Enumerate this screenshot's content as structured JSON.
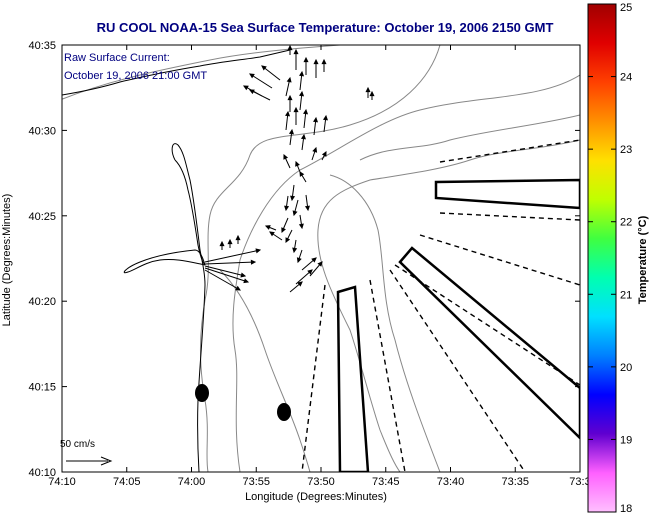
{
  "title": "RU COOL  NOAA-15  Sea Surface Temperature:  October 19, 2006 2150 GMT",
  "annotation": {
    "line1": "Raw Surface Current:",
    "line2": "October 19, 2006 21:00 GMT"
  },
  "axes": {
    "xlabel": "Longitude (Degrees:Minutes)",
    "ylabel": "Latitude (Degrees:Minutes)",
    "x_ticks": [
      "74:10",
      "74:05",
      "74:00",
      "73:55",
      "73:50",
      "73:45",
      "73:40",
      "73:35",
      "73:3"
    ],
    "y_ticks": [
      "40:35",
      "40:30",
      "40:25",
      "40:20",
      "40:15",
      "40:10"
    ]
  },
  "colorbar": {
    "label": "Temperature (°C)",
    "ticks": [
      "25",
      "24",
      "23",
      "22",
      "21",
      "20",
      "19",
      "18"
    ],
    "colors": [
      "#a00000",
      "#e00000",
      "#ff4000",
      "#ff9000",
      "#ffe000",
      "#c0ff00",
      "#40ff40",
      "#00ffb0",
      "#00e0ff",
      "#0080ff",
      "#0000ff",
      "#6000d0",
      "#ff60ff",
      "#ffc0ff"
    ]
  },
  "scale_arrow_label": "50 cm/s",
  "colors": {
    "title": "#000080",
    "coast": "#000000",
    "bathymetry": "#888888"
  }
}
